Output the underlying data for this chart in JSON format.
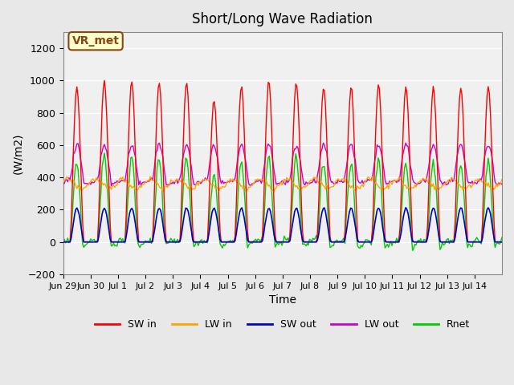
{
  "title": "Short/Long Wave Radiation",
  "xlabel": "Time",
  "ylabel": "(W/m2)",
  "ylim": [
    -200,
    1300
  ],
  "yticks": [
    -200,
    0,
    200,
    400,
    600,
    800,
    1000,
    1200
  ],
  "n_days": 16,
  "x_tick_positions": [
    0,
    1,
    2,
    3,
    4,
    5,
    6,
    7,
    8,
    9,
    10,
    11,
    12,
    13,
    14,
    15
  ],
  "x_tick_labels": [
    "Jun 29",
    "Jun 30",
    "Jul 1",
    "Jul 2",
    "Jul 3",
    "Jul 4",
    "Jul 5",
    "Jul 6",
    "Jul 7",
    "Jul 8",
    "Jul 9",
    "Jul 10",
    "Jul 11",
    "Jul 12",
    "Jul 13",
    "Jul 14"
  ],
  "annotation_text": "VR_met",
  "colors": {
    "SW_in": "#ff0000",
    "LW_in": "#ffa500",
    "SW_out": "#0000cc",
    "LW_out": "#cc00cc",
    "Rnet": "#00cc00"
  },
  "legend_labels": [
    "SW in",
    "LW in",
    "SW out",
    "LW out",
    "Rnet"
  ],
  "background_color": "#e8e8e8",
  "plot_bg_color": "#f0f0f0",
  "grid_color": "#ffffff"
}
